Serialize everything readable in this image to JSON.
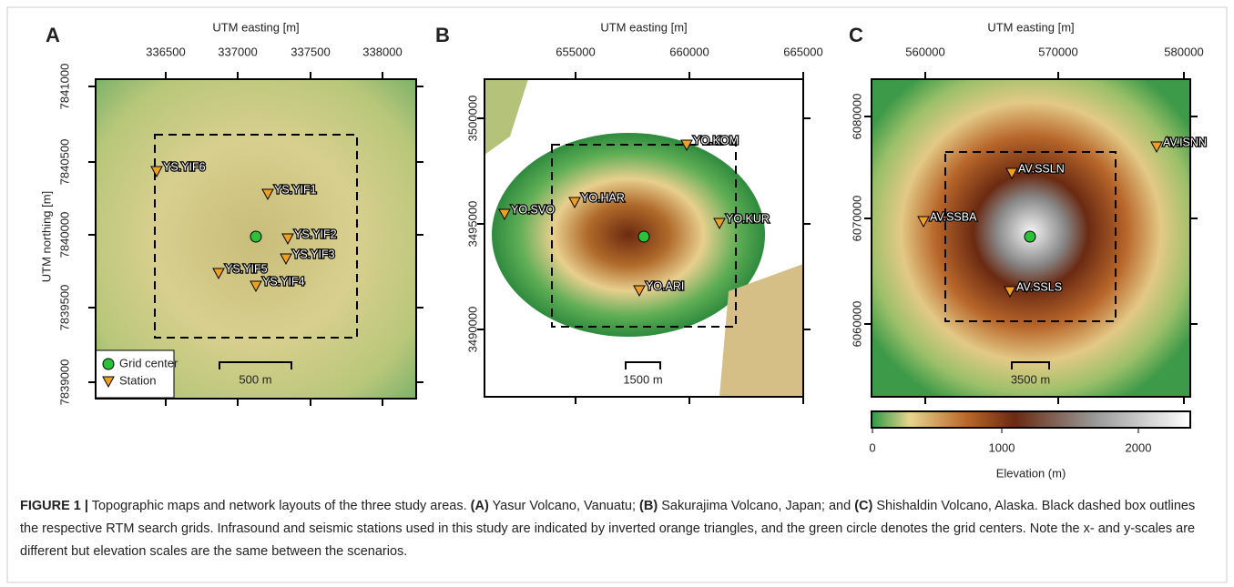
{
  "panels": [
    {
      "letter": "A",
      "x_axis_label": "UTM easting [m]",
      "y_axis_label": "UTM northing [m]",
      "x_ticks": [
        "336500",
        "337000",
        "337500",
        "338000"
      ],
      "y_ticks": [
        "7841000",
        "7840500",
        "7840000",
        "7839500",
        "7839000"
      ],
      "stations": [
        "YS.YIF6",
        "YS.YIF1",
        "YS.YIF2",
        "YS.YIF3",
        "YS.YIF5",
        "YS.YIF4"
      ],
      "scale_bar": "500 m",
      "legend": [
        "Grid center",
        "Station"
      ]
    },
    {
      "letter": "B",
      "x_axis_label": "UTM easting [m]",
      "x_ticks": [
        "655000",
        "660000",
        "665000"
      ],
      "y_ticks": [
        "3500000",
        "3495000",
        "3490000"
      ],
      "stations": [
        "YO.KOM",
        "YO.HAR",
        "YO.SVO",
        "YO.KUR",
        "YO.ARI"
      ],
      "scale_bar": "1500 m"
    },
    {
      "letter": "C",
      "x_axis_label": "UTM easting [m]",
      "x_ticks": [
        "560000",
        "570000",
        "580000"
      ],
      "y_ticks": [
        "6080000",
        "6070000",
        "6060000"
      ],
      "stations": [
        "AV.ISNN",
        "AV.SSLN",
        "AV.SSBA",
        "AV.SSLS"
      ],
      "scale_bar": "3500 m",
      "colorbar": {
        "ticks": [
          "0",
          "1000",
          "2000"
        ],
        "label": "Elevation (m)"
      }
    }
  ],
  "caption": [
    {
      "text": "FIGURE 1 |",
      "bold": true
    },
    {
      "text": " Topographic maps and network layouts of the three study areas. ",
      "bold": false
    },
    {
      "text": "(A)",
      "bold": true
    },
    {
      "text": " Yasur Volcano, Vanuatu; ",
      "bold": false
    },
    {
      "text": "(B)",
      "bold": true
    },
    {
      "text": " Sakurajima Volcano, Japan; and ",
      "bold": false
    },
    {
      "text": "(C)",
      "bold": true
    },
    {
      "text": " Shishaldin Volcano, Alaska. Black dashed box outlines the respective RTM search grids. Infrasound and seismic stations used in this study are indicated by inverted orange triangles, and the green circle denotes the grid centers. Note the x- and y-scales are different but elevation scales are the same between the scenarios.",
      "bold": false
    }
  ]
}
